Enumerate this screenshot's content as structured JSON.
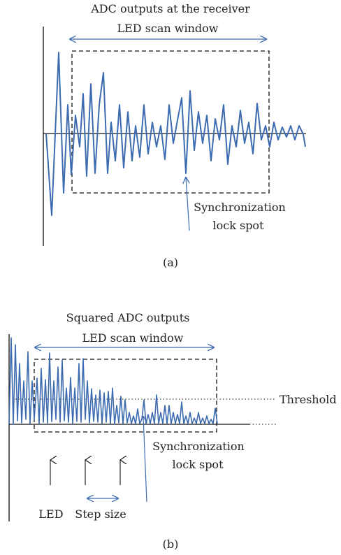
{
  "panel_a": {
    "title": "ADC outputs at the receiver",
    "window_label": "LED scan window",
    "sync_label_line1": "Synchronization",
    "sync_label_line2": "lock spot",
    "caption": "(a)"
  },
  "panel_b": {
    "title": "Squared ADC outputs",
    "window_label": "LED scan window",
    "threshold_label": "Threshold",
    "sync_label_line1": "Synchronization",
    "sync_label_line2": "lock spot",
    "led_label": "LED",
    "step_label": "Step size",
    "caption": "(b)"
  },
  "colors": {
    "signal": "#3d6bb0",
    "axis": "#111111",
    "window": "#111111"
  }
}
